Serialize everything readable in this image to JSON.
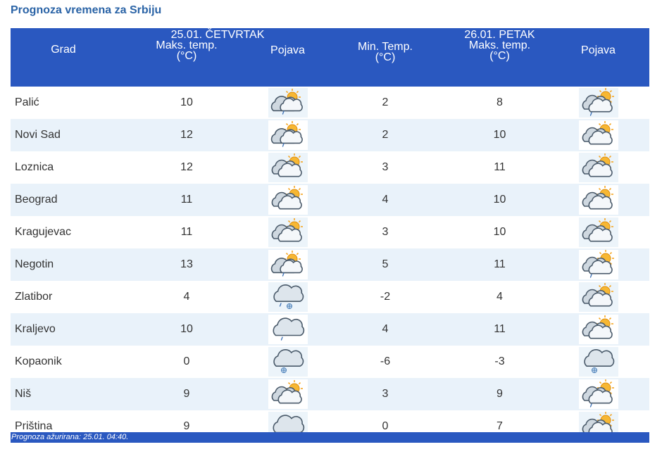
{
  "page_title": "Prognoza vremena za Srbiju",
  "header": {
    "grad": "Grad",
    "day1_date": "25.01. ČETVRTAK",
    "day2_date": "26.01. PETAK",
    "max_temp_line1": "Maks. temp.",
    "min_temp_line1": "Min. Temp.",
    "temp_unit": "(°C)",
    "pojava": "Pojava"
  },
  "rows": [
    {
      "city": "Palić",
      "d1_max": "10",
      "d1_icon": "sun-cloud-drizzle-icon",
      "d2_min": "2",
      "d2_max": "8",
      "d2_icon": "sun-clouds-drizzle-icon"
    },
    {
      "city": "Novi Sad",
      "d1_max": "12",
      "d1_icon": "sun-cloud-drizzle-icon",
      "d2_min": "2",
      "d2_max": "10",
      "d2_icon": "sun-clouds-icon"
    },
    {
      "city": "Loznica",
      "d1_max": "12",
      "d1_icon": "sun-clouds-icon",
      "d2_min": "3",
      "d2_max": "11",
      "d2_icon": "sun-clouds-icon"
    },
    {
      "city": "Beograd",
      "d1_max": "11",
      "d1_icon": "sun-clouds-icon",
      "d2_min": "4",
      "d2_max": "10",
      "d2_icon": "sun-clouds-icon"
    },
    {
      "city": "Kragujevac",
      "d1_max": "11",
      "d1_icon": "sun-clouds-icon",
      "d2_min": "3",
      "d2_max": "10",
      "d2_icon": "sun-clouds-icon"
    },
    {
      "city": "Negotin",
      "d1_max": "13",
      "d1_icon": "sun-cloud-drizzle-icon",
      "d2_min": "5",
      "d2_max": "11",
      "d2_icon": "sun-clouds-drizzle-icon"
    },
    {
      "city": "Zlatibor",
      "d1_max": "4",
      "d1_icon": "cloud-rain-snow-icon",
      "d2_min": "-2",
      "d2_max": "4",
      "d2_icon": "sun-clouds-icon"
    },
    {
      "city": "Kraljevo",
      "d1_max": "10",
      "d1_icon": "cloud-drizzle-icon",
      "d2_min": "4",
      "d2_max": "11",
      "d2_icon": "sun-clouds-icon"
    },
    {
      "city": "Kopaonik",
      "d1_max": "0",
      "d1_icon": "cloud-snow-icon",
      "d2_min": "-6",
      "d2_max": "-3",
      "d2_icon": "cloud-snow-icon"
    },
    {
      "city": "Niš",
      "d1_max": "9",
      "d1_icon": "sun-clouds-icon",
      "d2_min": "3",
      "d2_max": "9",
      "d2_icon": "sun-clouds-drizzle-icon"
    },
    {
      "city": "Priština",
      "d1_max": "9",
      "d1_icon": "cloud-drizzle-icon",
      "d2_min": "0",
      "d2_max": "7",
      "d2_icon": "sun-clouds-drizzle-icon"
    }
  ],
  "footer": {
    "updated": "Prognoza ažurirana:  25.01. 04:40."
  },
  "colors": {
    "header_bg": "#2a58c0",
    "title": "#2a63a6",
    "row_alt": "#e9f2fa",
    "sun": "#f5a623",
    "cloud_outline": "#4a5a6a"
  }
}
